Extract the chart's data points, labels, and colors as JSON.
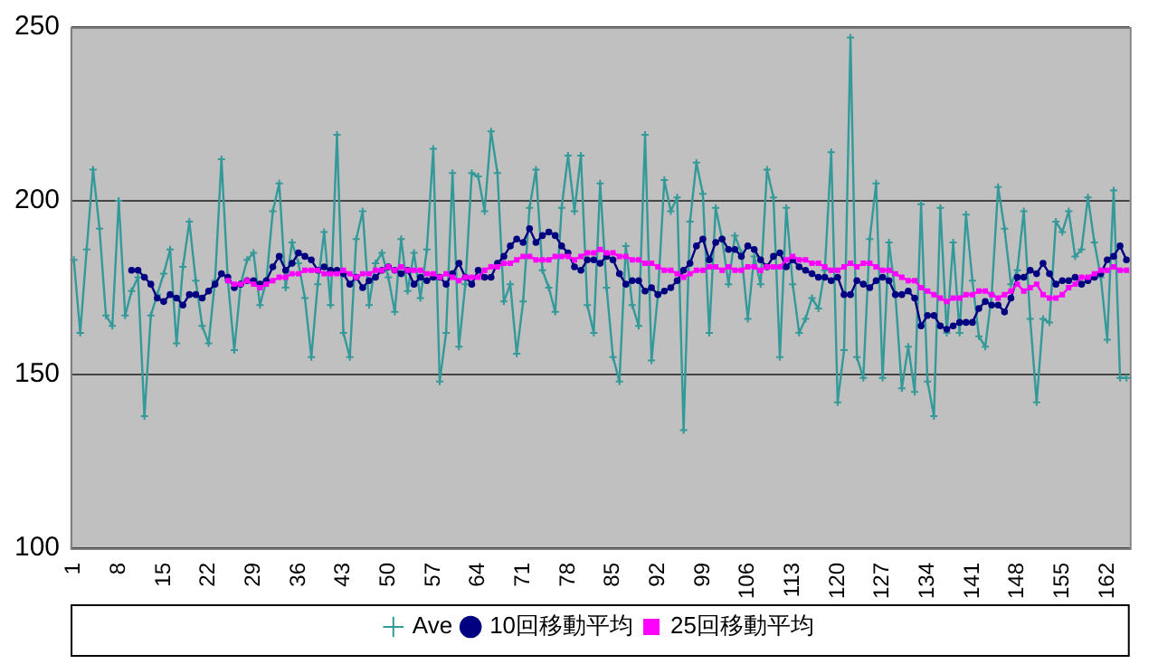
{
  "chart_data": {
    "type": "line",
    "categories": [
      "1",
      null,
      null,
      null,
      null,
      null,
      null,
      "8",
      null,
      null,
      null,
      null,
      null,
      null,
      "15",
      null,
      null,
      null,
      null,
      null,
      null,
      "22",
      null,
      null,
      null,
      null,
      null,
      null,
      "29",
      null,
      null,
      null,
      null,
      null,
      null,
      "36",
      null,
      null,
      null,
      null,
      null,
      null,
      "43",
      null,
      null,
      null,
      null,
      null,
      null,
      "50",
      null,
      null,
      null,
      null,
      null,
      null,
      "57",
      null,
      null,
      null,
      null,
      null,
      null,
      "64",
      null,
      null,
      null,
      null,
      null,
      null,
      "71",
      null,
      null,
      null,
      null,
      null,
      null,
      "78",
      null,
      null,
      null,
      null,
      null,
      null,
      "85",
      null,
      null,
      null,
      null,
      null,
      null,
      "92",
      null,
      null,
      null,
      null,
      null,
      null,
      "99",
      null,
      null,
      null,
      null,
      null,
      null,
      "106",
      null,
      null,
      null,
      null,
      null,
      null,
      "113",
      null,
      null,
      null,
      null,
      null,
      null,
      "120",
      null,
      null,
      null,
      null,
      null,
      null,
      "127",
      null,
      null,
      null,
      null,
      null,
      null,
      "134",
      null,
      null,
      null,
      null,
      null,
      null,
      "141",
      null,
      null,
      null,
      null,
      null,
      null,
      "148",
      null,
      null,
      null,
      null,
      null,
      null,
      "155",
      null,
      null,
      null,
      null,
      null,
      null,
      "162",
      null,
      null,
      null
    ],
    "series": [
      {
        "name": "Ave",
        "color": "#339999",
        "marker": "cross",
        "values": [
          183,
          162,
          186,
          209,
          192,
          167,
          164,
          200,
          167,
          174,
          178,
          138,
          167,
          173,
          179,
          186,
          159,
          181,
          194,
          177,
          164,
          159,
          177,
          212,
          177,
          157,
          176,
          183,
          185,
          170,
          177,
          197,
          205,
          175,
          188,
          182,
          172,
          155,
          176,
          191,
          170,
          219,
          162,
          155,
          189,
          197,
          170,
          182,
          185,
          178,
          168,
          189,
          174,
          185,
          172,
          186,
          215,
          148,
          162,
          208,
          158,
          176,
          208,
          207,
          197,
          220,
          208,
          171,
          176,
          156,
          171,
          198,
          209,
          180,
          175,
          168,
          198,
          213,
          197,
          213,
          170,
          162,
          205,
          175,
          155,
          148,
          187,
          170,
          164,
          219,
          154,
          173,
          206,
          197,
          201,
          134,
          194,
          211,
          202,
          162,
          198,
          189,
          176,
          190,
          185,
          166,
          184,
          176,
          209,
          201,
          155,
          198,
          176,
          162,
          166,
          172,
          169,
          180,
          214,
          142,
          157,
          247,
          155,
          149,
          189,
          205,
          149,
          188,
          173,
          146,
          158,
          145,
          199,
          148,
          138,
          198,
          162,
          188,
          162,
          196,
          177,
          161,
          158,
          173,
          204,
          192,
          176,
          180,
          197,
          166,
          142,
          166,
          165,
          194,
          191,
          197,
          184,
          186,
          201,
          188,
          178,
          160,
          203,
          149,
          149
        ]
      },
      {
        "name": "10回移動平均",
        "color": "#000080",
        "marker": "circle",
        "values": [
          null,
          null,
          null,
          null,
          null,
          null,
          null,
          null,
          null,
          180,
          180,
          178,
          176,
          172,
          171,
          173,
          172,
          170,
          173,
          173,
          172,
          174,
          176,
          179,
          178,
          175,
          176,
          177,
          177,
          176,
          177,
          181,
          184,
          180,
          182,
          185,
          184,
          183,
          180,
          181,
          180,
          180,
          179,
          176,
          178,
          175,
          177,
          178,
          180,
          181,
          180,
          179,
          180,
          176,
          178,
          177,
          178,
          178,
          176,
          179,
          182,
          178,
          176,
          180,
          178,
          178,
          182,
          184,
          187,
          189,
          188,
          192,
          188,
          190,
          191,
          190,
          187,
          185,
          181,
          180,
          183,
          183,
          182,
          184,
          183,
          179,
          176,
          177,
          177,
          174,
          175,
          173,
          174,
          175,
          177,
          180,
          182,
          187,
          189,
          183,
          188,
          189,
          186,
          186,
          184,
          187,
          186,
          183,
          181,
          184,
          185,
          181,
          183,
          181,
          180,
          179,
          178,
          178,
          177,
          178,
          173,
          173,
          177,
          176,
          175,
          177,
          178,
          177,
          173,
          173,
          174,
          172,
          164,
          167,
          167,
          164,
          163,
          164,
          165,
          165,
          165,
          169,
          171,
          170,
          170,
          168,
          172,
          178,
          178,
          180,
          179,
          182,
          179,
          176,
          177,
          177,
          178,
          176,
          177,
          178,
          179,
          183,
          184,
          187,
          183
        ]
      },
      {
        "name": "25回移動平均",
        "color": "#ff00ff",
        "marker": "square",
        "values": [
          null,
          null,
          null,
          null,
          null,
          null,
          null,
          null,
          null,
          null,
          null,
          null,
          null,
          null,
          null,
          null,
          null,
          null,
          null,
          null,
          null,
          null,
          null,
          null,
          177,
          176,
          176,
          177,
          176,
          175,
          176,
          177,
          178,
          178,
          179,
          179,
          180,
          180,
          180,
          179,
          179,
          179,
          180,
          179,
          178,
          179,
          179,
          180,
          180,
          181,
          180,
          181,
          180,
          180,
          180,
          179,
          179,
          178,
          179,
          178,
          177,
          178,
          178,
          178,
          180,
          181,
          181,
          182,
          182,
          183,
          184,
          184,
          183,
          183,
          183,
          184,
          184,
          184,
          183,
          184,
          185,
          185,
          186,
          185,
          185,
          184,
          184,
          183,
          183,
          182,
          182,
          181,
          180,
          180,
          179,
          178,
          179,
          180,
          180,
          181,
          181,
          180,
          181,
          180,
          180,
          181,
          181,
          180,
          181,
          181,
          181,
          183,
          184,
          183,
          183,
          182,
          182,
          181,
          180,
          180,
          181,
          182,
          181,
          182,
          182,
          181,
          180,
          180,
          179,
          178,
          177,
          177,
          175,
          174,
          173,
          172,
          171,
          172,
          172,
          173,
          173,
          174,
          174,
          173,
          172,
          173,
          174,
          176,
          174,
          175,
          176,
          173,
          172,
          172,
          173,
          175,
          176,
          178,
          178,
          179,
          180,
          180,
          181,
          180,
          180
        ]
      }
    ],
    "ylim": [
      100,
      250
    ],
    "yticks": [
      100,
      150,
      200,
      250
    ],
    "grid": "y",
    "legend": "bottom"
  }
}
